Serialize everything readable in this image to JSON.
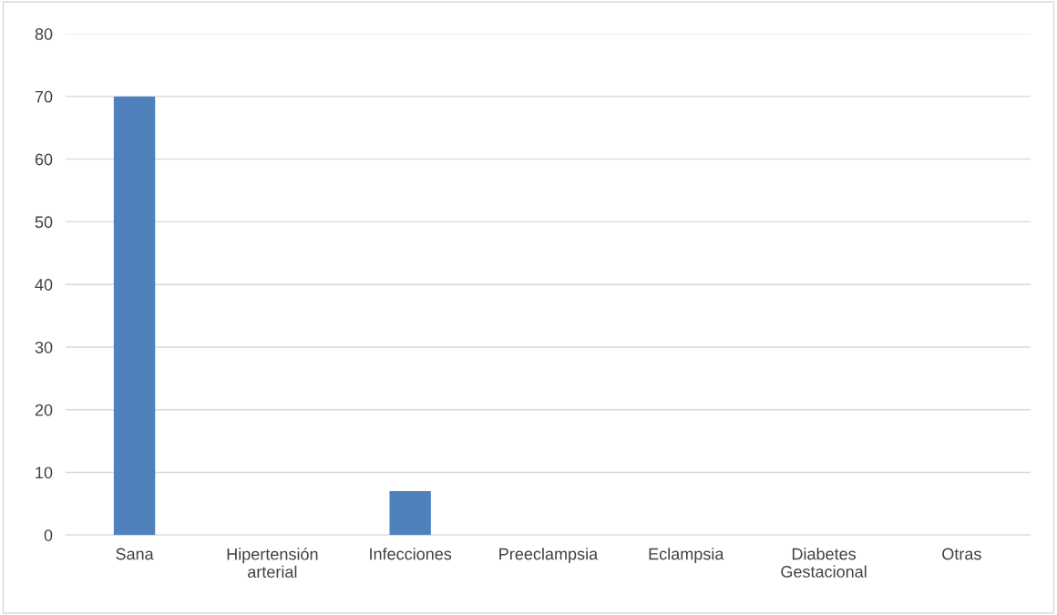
{
  "chart_data": {
    "type": "bar",
    "categories": [
      "Sana",
      "Hipertensión\narterial",
      "Infecciones",
      "Preeclampsia",
      "Eclampsia",
      "Diabetes\nGestacional",
      "Otras"
    ],
    "values": [
      70,
      0,
      7,
      0,
      0,
      0,
      0
    ],
    "color": "#4f81bd",
    "ylim": [
      0,
      80
    ],
    "yticks": [
      0,
      10,
      20,
      30,
      40,
      50,
      60,
      70,
      80
    ],
    "grid": "y",
    "legend": false
  }
}
